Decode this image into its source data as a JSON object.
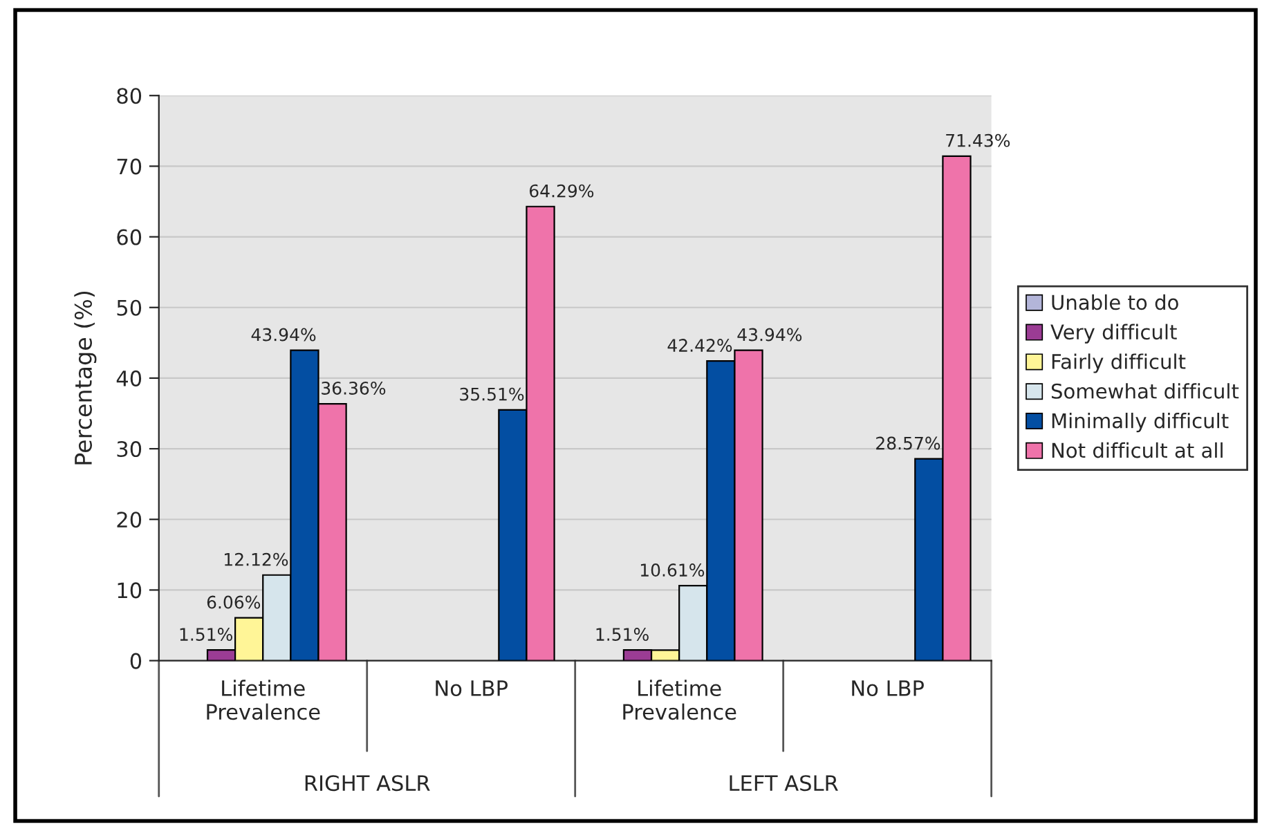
{
  "chart_data": {
    "type": "bar",
    "ylabel": "Percentage (%)",
    "categories": [
      "Lifetime\nPrevalence",
      "No LBP",
      "Lifetime\nPrevalence",
      "No LBP"
    ],
    "annotations": [
      "RIGHT ASLR",
      "LEFT ASLR"
    ],
    "series": [
      {
        "name": "Unable to do",
        "color": "#b3b5d9",
        "values": [
          null,
          null,
          null,
          null
        ],
        "value_labels": [
          null,
          null,
          null,
          null
        ]
      },
      {
        "name": "Very difficult",
        "color": "#9b3c94",
        "values": [
          1.51,
          null,
          1.51,
          null
        ],
        "value_labels": [
          "1.51%",
          null,
          "1.51%",
          null
        ]
      },
      {
        "name": "Fairly difficult",
        "color": "#fff597",
        "values": [
          6.06,
          null,
          1.5,
          null
        ],
        "value_labels": [
          "6.06%",
          null,
          null,
          null
        ]
      },
      {
        "name": "Somewhat difficult",
        "color": "#d6e5ec",
        "values": [
          12.12,
          null,
          10.61,
          null
        ],
        "value_labels": [
          "12.12%",
          null,
          "10.61%",
          null
        ]
      },
      {
        "name": "Minimally difficult",
        "color": "#034ea2",
        "values": [
          43.94,
          35.51,
          42.42,
          28.57
        ],
        "value_labels": [
          "43.94%",
          "35.51%",
          "42.42%",
          "28.57%"
        ]
      },
      {
        "name": "Not difficult at all",
        "color": "#ef73aa",
        "values": [
          36.36,
          64.29,
          43.94,
          71.43
        ],
        "value_labels": [
          "36.36%",
          "64.29%",
          "43.94%",
          "71.43%"
        ]
      }
    ],
    "ylim": [
      0,
      80
    ],
    "yticks": [
      0,
      10,
      20,
      30,
      40,
      50,
      60,
      70,
      80
    ],
    "grid": "y",
    "legend": "right"
  }
}
